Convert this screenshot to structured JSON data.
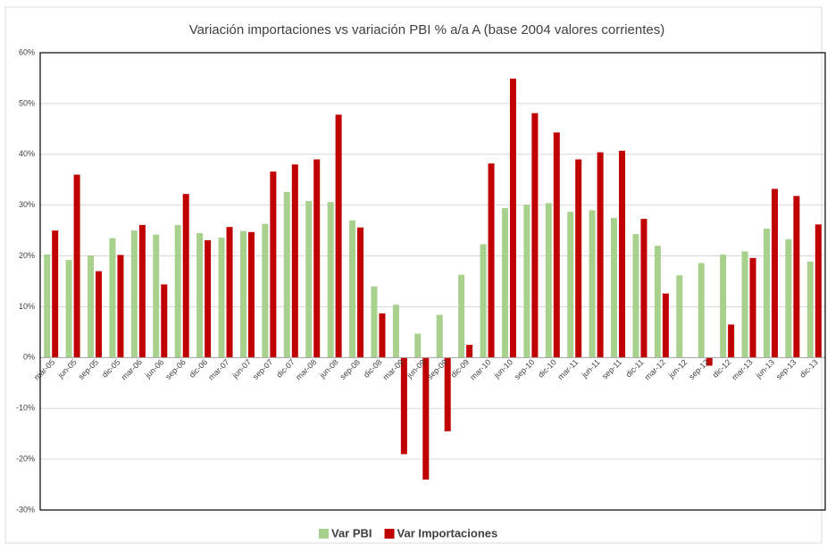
{
  "chart_data": {
    "type": "bar",
    "title": "Variación importaciones vs variación PBI % a/a A (base 2004 valores corrientes)",
    "categories": [
      "mar-05",
      "jun-05",
      "sep-05",
      "dic-05",
      "mar-06",
      "jun-06",
      "sep-06",
      "dic-06",
      "mar-07",
      "jun-07",
      "sep-07",
      "dic-07",
      "mar-08",
      "jun-08",
      "sep-08",
      "dic-08",
      "mar-09",
      "jun-09",
      "sep-09",
      "dic-09",
      "mar-10",
      "jun-10",
      "sep-10",
      "dic-10",
      "mar-11",
      "jun-11",
      "sep-11",
      "dic-11",
      "mar-12",
      "jun-12",
      "sep-12",
      "dic-12",
      "mar-13",
      "jun-13",
      "sep-13",
      "dic-13"
    ],
    "series": [
      {
        "name": "Var PBI",
        "color": "#a9d18e",
        "values": [
          20.3,
          19.2,
          20.1,
          23.5,
          25,
          24.2,
          26.1,
          24.5,
          23.6,
          24.9,
          26.3,
          32.6,
          30.8,
          30.6,
          27,
          14,
          10.4,
          4.7,
          8.4,
          16.3,
          22.3,
          29.4,
          30.1,
          30.4,
          28.7,
          29,
          27.5,
          24.3,
          22,
          16.2,
          18.6,
          20.3,
          20.9,
          25.4,
          23.3,
          18.9
        ]
      },
      {
        "name": "Var Importaciones",
        "color": "#c00000",
        "values": [
          25,
          36,
          17,
          20.2,
          26.1,
          14.4,
          32.2,
          23.1,
          25.7,
          24.7,
          36.6,
          38,
          39,
          47.8,
          25.6,
          8.7,
          -19,
          -24,
          -14.5,
          2.5,
          38.2,
          54.9,
          48.1,
          44.3,
          39,
          40.4,
          40.7,
          27.3,
          12.6,
          0,
          -1.6,
          6.5,
          19.6,
          33.2,
          31.8,
          26.2
        ]
      }
    ],
    "ylim": [
      -30,
      60
    ],
    "yticks": [
      {
        "value": -30,
        "label": "-30%"
      },
      {
        "value": -20,
        "label": "-20%"
      },
      {
        "value": -10,
        "label": "-10%"
      },
      {
        "value": 0,
        "label": "0%"
      },
      {
        "value": 10,
        "label": "10%"
      },
      {
        "value": 20,
        "label": "20%"
      },
      {
        "value": 30,
        "label": "30%"
      },
      {
        "value": 40,
        "label": "40%"
      },
      {
        "value": 50,
        "label": "50%"
      },
      {
        "value": 60,
        "label": "60%"
      }
    ],
    "grid": true
  }
}
